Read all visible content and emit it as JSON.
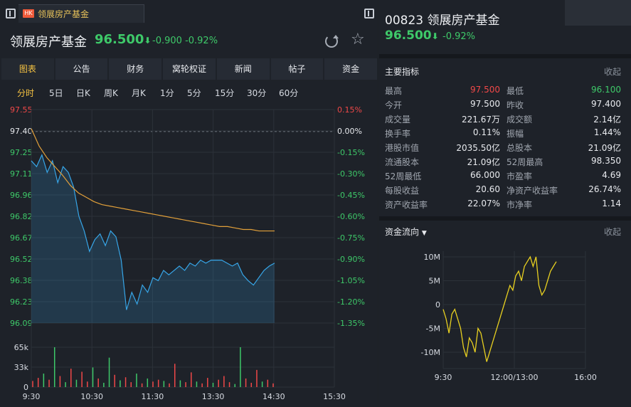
{
  "tab": {
    "badge": "HK",
    "label": "领展房产基金"
  },
  "header": {
    "name": "领展房产基金",
    "price": "96.500",
    "arrow": "⬇",
    "change": "-0.900",
    "pct": "-0.92%"
  },
  "nav": [
    "图表",
    "公告",
    "财务",
    "窝轮权证",
    "新闻",
    "帖子",
    "资金"
  ],
  "periods": [
    "分时",
    "5日",
    "日K",
    "周K",
    "月K",
    "1分",
    "5分",
    "15分",
    "30分",
    "60分"
  ],
  "chart_data": {
    "type": "line",
    "price_axis": [
      "97.55",
      "97.40",
      "97.25",
      "97.11",
      "96.96",
      "96.82",
      "96.67",
      "96.52",
      "96.38",
      "96.23",
      "96.09"
    ],
    "pct_axis": [
      "0.15%",
      "0.00%",
      "-0.15%",
      "-0.30%",
      "-0.45%",
      "-0.60%",
      "-0.75%",
      "-0.90%",
      "-1.05%",
      "-1.20%",
      "-1.35%"
    ],
    "ylim": [
      96.09,
      97.55
    ],
    "prev_close": 97.4,
    "volume_axis": [
      "65k",
      "33k",
      "0"
    ],
    "time_ticks": [
      "9:30",
      "10:30",
      "11:30",
      "13:30",
      "14:30",
      "15:30"
    ],
    "price": [
      97.2,
      97.16,
      97.24,
      97.12,
      97.2,
      97.05,
      97.16,
      97.12,
      97.02,
      96.82,
      96.72,
      96.58,
      96.66,
      96.7,
      96.62,
      96.72,
      96.68,
      96.52,
      96.18,
      96.3,
      96.22,
      96.35,
      96.3,
      96.4,
      96.38,
      96.45,
      96.42,
      96.45,
      96.48,
      96.45,
      96.5,
      96.48,
      96.52,
      96.5,
      96.52,
      96.52,
      96.52,
      96.5,
      96.48,
      96.5,
      96.42,
      96.38,
      96.35,
      96.4,
      96.45,
      96.48,
      96.5
    ],
    "avg": [
      97.42,
      97.3,
      97.22,
      97.16,
      97.1,
      97.03,
      96.98,
      96.95,
      96.92,
      96.9,
      96.89,
      96.88,
      96.87,
      96.86,
      96.85,
      96.84,
      96.83,
      96.82,
      96.81,
      96.8,
      96.79,
      96.78,
      96.77,
      96.76,
      96.75,
      96.75,
      96.74,
      96.73,
      96.73,
      96.72,
      96.72,
      96.72
    ],
    "volume": [
      {
        "v": 10,
        "c": "red"
      },
      {
        "v": 15,
        "c": "red"
      },
      {
        "v": 22,
        "c": "green"
      },
      {
        "v": 12,
        "c": "red"
      },
      {
        "v": 65,
        "c": "green"
      },
      {
        "v": 18,
        "c": "red"
      },
      {
        "v": 8,
        "c": "green"
      },
      {
        "v": 30,
        "c": "red"
      },
      {
        "v": 12,
        "c": "green"
      },
      {
        "v": 25,
        "c": "red"
      },
      {
        "v": 9,
        "c": "red"
      },
      {
        "v": 32,
        "c": "green"
      },
      {
        "v": 14,
        "c": "red"
      },
      {
        "v": 7,
        "c": "green"
      },
      {
        "v": 48,
        "c": "green"
      },
      {
        "v": 20,
        "c": "red"
      },
      {
        "v": 11,
        "c": "green"
      },
      {
        "v": 16,
        "c": "red"
      },
      {
        "v": 8,
        "c": "red"
      },
      {
        "v": 22,
        "c": "green"
      },
      {
        "v": 6,
        "c": "red"
      },
      {
        "v": 14,
        "c": "green"
      },
      {
        "v": 9,
        "c": "red"
      },
      {
        "v": 12,
        "c": "red"
      },
      {
        "v": 10,
        "c": "green"
      },
      {
        "v": 6,
        "c": "red"
      },
      {
        "v": 38,
        "c": "red"
      },
      {
        "v": 11,
        "c": "green"
      },
      {
        "v": 8,
        "c": "red"
      },
      {
        "v": 24,
        "c": "red"
      },
      {
        "v": 9,
        "c": "green"
      },
      {
        "v": 6,
        "c": "red"
      },
      {
        "v": 15,
        "c": "red"
      },
      {
        "v": 7,
        "c": "green"
      },
      {
        "v": 12,
        "c": "red"
      },
      {
        "v": 18,
        "c": "red"
      },
      {
        "v": 8,
        "c": "red"
      },
      {
        "v": 5,
        "c": "green"
      },
      {
        "v": 68,
        "c": "green"
      },
      {
        "v": 14,
        "c": "red"
      },
      {
        "v": 7,
        "c": "red"
      },
      {
        "v": 28,
        "c": "red"
      },
      {
        "v": 9,
        "c": "green"
      },
      {
        "v": 12,
        "c": "red"
      },
      {
        "v": 6,
        "c": "red"
      }
    ]
  },
  "right": {
    "title": "00823 领展房产基金",
    "price": "96.500",
    "arrow": "⬇",
    "pct": "-0.92%",
    "indicators_title": "主要指标",
    "collapse": "收起",
    "metrics": [
      [
        "最高",
        "97.500",
        "最低",
        "96.100"
      ],
      [
        "今开",
        "97.500",
        "昨收",
        "97.400"
      ],
      [
        "成交量",
        "221.67万",
        "成交额",
        "2.14亿"
      ],
      [
        "换手率",
        "0.11%",
        "振幅",
        "1.44%"
      ],
      [
        "港股市值",
        "2035.50亿",
        "总股本",
        "21.09亿"
      ],
      [
        "流通股本",
        "21.09亿",
        "52周最高",
        "98.350"
      ],
      [
        "52周最低",
        "66.000",
        "市盈率",
        "4.69"
      ],
      [
        "每股收益",
        "20.60",
        "净资产收益率",
        "26.74%"
      ],
      [
        "资产收益率",
        "22.07%",
        "市净率",
        "1.14"
      ]
    ],
    "flow_title": "资金流向",
    "flow_collapse": "收起"
  },
  "flow_chart": {
    "type": "line",
    "y_ticks": [
      "10M",
      "5M",
      "0",
      "-5M",
      "-10M"
    ],
    "ylim": [
      -10,
      10
    ],
    "x_ticks": [
      "9:30",
      "12:00/13:00",
      "16:00"
    ],
    "values": [
      -1,
      -3,
      -6,
      -2,
      -1,
      -3,
      -5,
      -9,
      -11,
      -7,
      -8,
      -10,
      -5,
      -6,
      -9,
      -12,
      -10,
      -8,
      -6,
      -4,
      -2,
      0,
      2,
      4,
      3,
      6,
      7,
      5,
      8,
      9,
      10,
      8,
      10,
      4,
      2,
      3,
      5,
      7,
      8,
      9
    ],
    "colors": {
      "up": "#f04848",
      "down": "#3ec969",
      "price": "#37a6e8",
      "avg": "#e2a03a",
      "flow": "#e8d020"
    }
  }
}
